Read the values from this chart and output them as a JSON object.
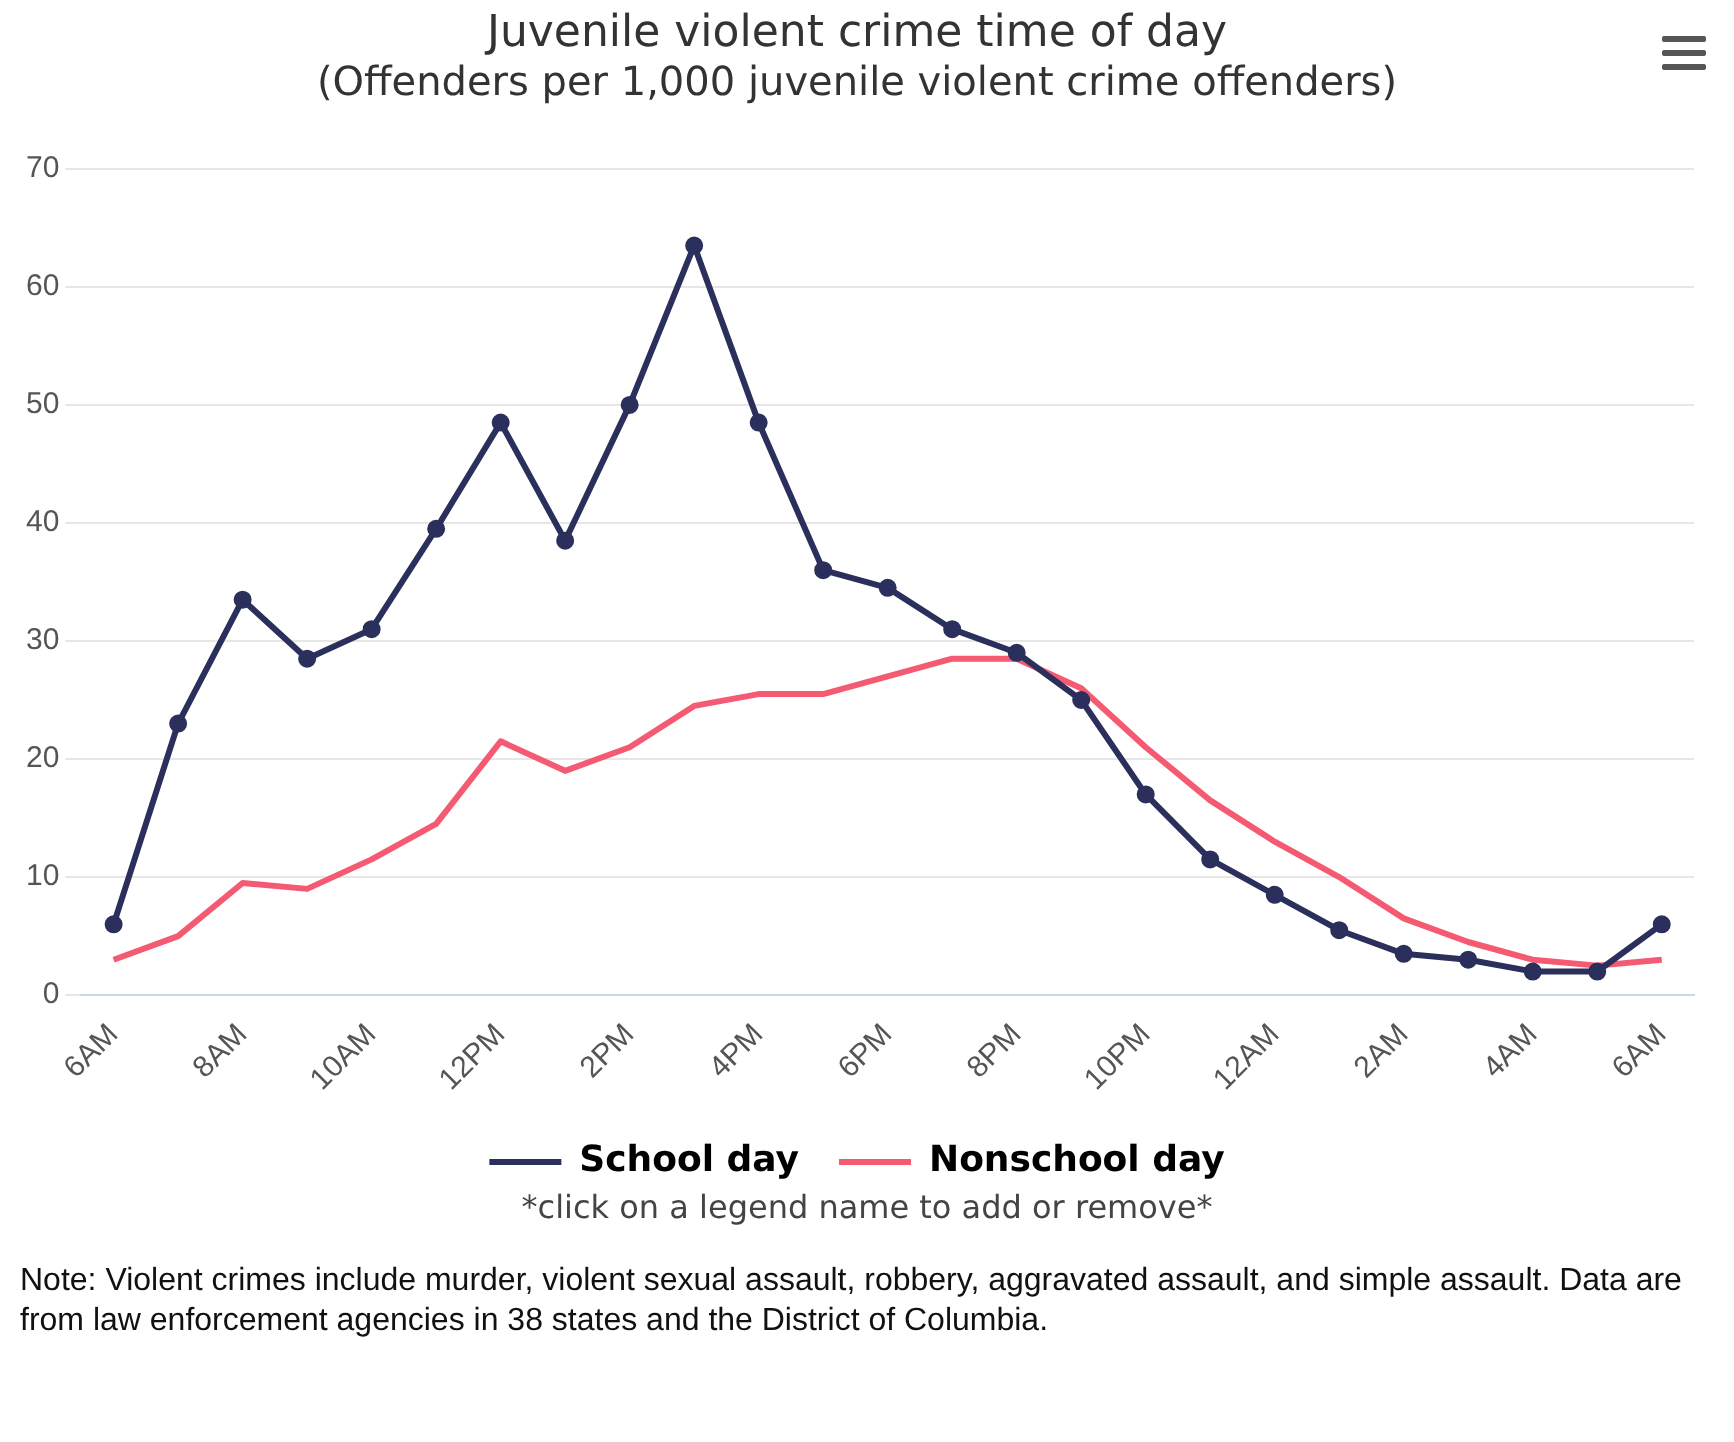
{
  "chart_data": {
    "type": "line",
    "title": "Juvenile violent crime time of day",
    "subtitle": "(Offenders per 1,000 juvenile violent crime offenders)",
    "categories": [
      "6AM",
      null,
      "8AM",
      null,
      "10AM",
      null,
      "12PM",
      null,
      "2PM",
      null,
      "4PM",
      null,
      "6PM",
      null,
      "8PM",
      null,
      "10PM",
      null,
      "12AM",
      null,
      "2AM",
      null,
      "4AM",
      null,
      "6AM"
    ],
    "series": [
      {
        "name": "School day",
        "color": "#2b2f5c",
        "marker": "circle",
        "values": [
          6,
          23,
          33.5,
          28.5,
          31,
          39.5,
          48.5,
          38.5,
          50,
          63.5,
          48.5,
          36,
          34.5,
          31,
          29,
          25,
          17,
          11.5,
          8.5,
          5.5,
          3.5,
          3,
          2,
          2,
          6
        ]
      },
      {
        "name": "Nonschool day",
        "color": "#f45b73",
        "marker": "none",
        "values": [
          3,
          5,
          9.5,
          9,
          11.5,
          14.5,
          21.5,
          19,
          21,
          24.5,
          25.5,
          25.5,
          27,
          28.5,
          28.5,
          26,
          21,
          16.5,
          13,
          10,
          6.5,
          4.5,
          3,
          2.5,
          3
        ]
      }
    ],
    "ylim": [
      0,
      70
    ],
    "yticks": [
      0,
      10,
      20,
      30,
      40,
      50,
      60,
      70
    ],
    "grid": "y",
    "legend": "bottom",
    "annotations": [
      "*click on a legend name to add or remove*",
      "Note: Violent crimes include murder, violent sexual assault, robbery, aggravated assault, and simple assault. Data are from law enforcement agencies in 38 states and the District of Columbia."
    ]
  }
}
